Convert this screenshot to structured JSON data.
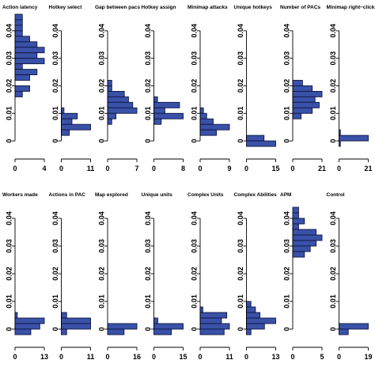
{
  "chart_data": [
    {
      "type": "bar",
      "orientation": "horizontal",
      "title": "Action latency",
      "bin_width": 0.002,
      "xticks": [
        0,
        4
      ],
      "xlim": [
        0,
        4
      ],
      "yticks": [
        0,
        0.01,
        0.02,
        0.03,
        0.04
      ],
      "ylim": [
        -0.004,
        0.046
      ],
      "bars": [
        {
          "y": 0.045,
          "v": 1
        },
        {
          "y": 0.043,
          "v": 1
        },
        {
          "y": 0.041,
          "v": 1
        },
        {
          "y": 0.039,
          "v": 1
        },
        {
          "y": 0.037,
          "v": 2
        },
        {
          "y": 0.035,
          "v": 3
        },
        {
          "y": 0.033,
          "v": 4
        },
        {
          "y": 0.031,
          "v": 3
        },
        {
          "y": 0.029,
          "v": 4
        },
        {
          "y": 0.027,
          "v": 1
        },
        {
          "y": 0.025,
          "v": 3
        },
        {
          "y": 0.023,
          "v": 2
        },
        {
          "y": 0.019,
          "v": 2
        },
        {
          "y": 0.017,
          "v": 1
        }
      ]
    },
    {
      "type": "bar",
      "orientation": "horizontal",
      "title": "Hotkey select",
      "bin_width": 0.002,
      "xticks": [
        0,
        11
      ],
      "xlim": [
        0,
        11
      ],
      "yticks": [
        0,
        0.01,
        0.02,
        0.03,
        0.04
      ],
      "ylim": [
        -0.004,
        0.046
      ],
      "bars": [
        {
          "y": 0.011,
          "v": 1
        },
        {
          "y": 0.009,
          "v": 6
        },
        {
          "y": 0.007,
          "v": 4
        },
        {
          "y": 0.005,
          "v": 11
        },
        {
          "y": 0.003,
          "v": 3
        }
      ]
    },
    {
      "type": "bar",
      "orientation": "horizontal",
      "title": "Gap between pacs",
      "bin_width": 0.002,
      "xticks": [
        0,
        7
      ],
      "xlim": [
        0,
        7
      ],
      "yticks": [
        0,
        0.01,
        0.02,
        0.03,
        0.04
      ],
      "ylim": [
        -0.004,
        0.046
      ],
      "bars": [
        {
          "y": 0.021,
          "v": 1
        },
        {
          "y": 0.019,
          "v": 1
        },
        {
          "y": 0.017,
          "v": 4
        },
        {
          "y": 0.015,
          "v": 5
        },
        {
          "y": 0.013,
          "v": 6
        },
        {
          "y": 0.011,
          "v": 7
        },
        {
          "y": 0.009,
          "v": 2
        },
        {
          "y": 0.007,
          "v": 1
        }
      ]
    },
    {
      "type": "bar",
      "orientation": "horizontal",
      "title": "Hotkey assign",
      "bin_width": 0.002,
      "xticks": [
        0,
        8
      ],
      "xlim": [
        0,
        8
      ],
      "yticks": [
        0,
        0.01,
        0.02,
        0.03,
        0.04
      ],
      "ylim": [
        -0.004,
        0.046
      ],
      "bars": [
        {
          "y": 0.015,
          "v": 1
        },
        {
          "y": 0.013,
          "v": 7
        },
        {
          "y": 0.011,
          "v": 3
        },
        {
          "y": 0.009,
          "v": 8
        },
        {
          "y": 0.007,
          "v": 2
        }
      ]
    },
    {
      "type": "bar",
      "orientation": "horizontal",
      "title": "Minimap attacks",
      "bin_width": 0.002,
      "xticks": [
        0,
        9
      ],
      "xlim": [
        0,
        9
      ],
      "yticks": [
        0,
        0.01,
        0.02,
        0.03,
        0.04
      ],
      "ylim": [
        -0.004,
        0.046
      ],
      "bars": [
        {
          "y": 0.011,
          "v": 1
        },
        {
          "y": 0.009,
          "v": 2
        },
        {
          "y": 0.007,
          "v": 4
        },
        {
          "y": 0.005,
          "v": 9
        },
        {
          "y": 0.003,
          "v": 5
        }
      ]
    },
    {
      "type": "bar",
      "orientation": "horizontal",
      "title": "Unique hotkeys",
      "bin_width": 0.002,
      "xticks": [
        0,
        15
      ],
      "xlim": [
        0,
        15
      ],
      "yticks": [
        0,
        0.01,
        0.02,
        0.03,
        0.04
      ],
      "ylim": [
        -0.004,
        0.046
      ],
      "bars": [
        {
          "y": 0.001,
          "v": 9
        },
        {
          "y": -0.001,
          "v": 15
        }
      ]
    },
    {
      "type": "bar",
      "orientation": "horizontal",
      "title": "Number of PACs",
      "bin_width": 0.002,
      "xticks": [
        0,
        21
      ],
      "xlim": [
        0,
        21
      ],
      "yticks": [
        0,
        0.01,
        0.02,
        0.03,
        0.04
      ],
      "ylim": [
        -0.004,
        0.046
      ],
      "bars": [
        {
          "y": 0.021,
          "v": 7
        },
        {
          "y": 0.019,
          "v": 14
        },
        {
          "y": 0.017,
          "v": 21
        },
        {
          "y": 0.015,
          "v": 16
        },
        {
          "y": 0.013,
          "v": 19
        },
        {
          "y": 0.011,
          "v": 14
        },
        {
          "y": 0.009,
          "v": 6
        }
      ]
    },
    {
      "type": "bar",
      "orientation": "horizontal",
      "title": "Minimap right−clicks",
      "bin_width": 0.002,
      "xticks": [
        0,
        21
      ],
      "xlim": [
        0,
        21
      ],
      "yticks": [
        0,
        0.01,
        0.02,
        0.03,
        0.04
      ],
      "ylim": [
        -0.004,
        0.046
      ],
      "bars": [
        {
          "y": 0.003,
          "v": 1
        },
        {
          "y": 0.001,
          "v": 21
        },
        {
          "y": -0.001,
          "v": 1
        }
      ]
    },
    {
      "type": "bar",
      "orientation": "horizontal",
      "title": "Workers made",
      "bin_width": 0.002,
      "xticks": [
        0,
        13
      ],
      "xlim": [
        0,
        13
      ],
      "yticks": [
        0,
        0.01,
        0.02,
        0.03,
        0.04
      ],
      "ylim": [
        -0.004,
        0.046
      ],
      "bars": [
        {
          "y": 0.005,
          "v": 1
        },
        {
          "y": 0.003,
          "v": 13
        },
        {
          "y": 0.001,
          "v": 11
        },
        {
          "y": -0.001,
          "v": 7
        }
      ]
    },
    {
      "type": "bar",
      "orientation": "horizontal",
      "title": "Actions in PAC",
      "bin_width": 0.002,
      "xticks": [
        0,
        11
      ],
      "xlim": [
        0,
        11
      ],
      "yticks": [
        0,
        0.01,
        0.02,
        0.03,
        0.04
      ],
      "ylim": [
        -0.004,
        0.046
      ],
      "bars": [
        {
          "y": 0.005,
          "v": 2
        },
        {
          "y": 0.003,
          "v": 11
        },
        {
          "y": 0.001,
          "v": 11
        },
        {
          "y": -0.001,
          "v": 2
        }
      ]
    },
    {
      "type": "bar",
      "orientation": "horizontal",
      "title": "Map explored",
      "bin_width": 0.002,
      "xticks": [
        0,
        16
      ],
      "xlim": [
        0,
        16
      ],
      "yticks": [
        0,
        0.01,
        0.02,
        0.03,
        0.04
      ],
      "ylim": [
        -0.004,
        0.046
      ],
      "bars": [
        {
          "y": 0.001,
          "v": 16
        },
        {
          "y": -0.001,
          "v": 9
        }
      ]
    },
    {
      "type": "bar",
      "orientation": "horizontal",
      "title": "Unique units",
      "bin_width": 0.002,
      "xticks": [
        0,
        15
      ],
      "xlim": [
        0,
        15
      ],
      "yticks": [
        0,
        0.01,
        0.02,
        0.03,
        0.04
      ],
      "ylim": [
        -0.004,
        0.046
      ],
      "bars": [
        {
          "y": 0.003,
          "v": 2
        },
        {
          "y": 0.001,
          "v": 15
        },
        {
          "y": -0.001,
          "v": 9
        }
      ]
    },
    {
      "type": "bar",
      "orientation": "horizontal",
      "title": "Complex Units",
      "bin_width": 0.002,
      "xticks": [
        0,
        11
      ],
      "xlim": [
        0,
        11
      ],
      "yticks": [
        0,
        0.01,
        0.02,
        0.03,
        0.04
      ],
      "ylim": [
        -0.004,
        0.046
      ],
      "bars": [
        {
          "y": 0.007,
          "v": 1
        },
        {
          "y": 0.005,
          "v": 10
        },
        {
          "y": 0.003,
          "v": 8
        },
        {
          "y": 0.001,
          "v": 11
        },
        {
          "y": -0.001,
          "v": 9
        }
      ]
    },
    {
      "type": "bar",
      "orientation": "horizontal",
      "title": "Complex Abilities",
      "bin_width": 0.002,
      "xticks": [
        0,
        13
      ],
      "xlim": [
        0,
        13
      ],
      "yticks": [
        0,
        0.01,
        0.02,
        0.03,
        0.04
      ],
      "ylim": [
        -0.004,
        0.046
      ],
      "bars": [
        {
          "y": 0.009,
          "v": 2
        },
        {
          "y": 0.007,
          "v": 4
        },
        {
          "y": 0.005,
          "v": 6
        },
        {
          "y": 0.003,
          "v": 13
        },
        {
          "y": 0.001,
          "v": 8
        },
        {
          "y": -0.001,
          "v": 2
        }
      ]
    },
    {
      "type": "bar",
      "orientation": "horizontal",
      "title": "APM",
      "bin_width": 0.002,
      "xticks": [
        0,
        5
      ],
      "xlim": [
        0,
        5
      ],
      "yticks": [
        0,
        0.01,
        0.02,
        0.03,
        0.04
      ],
      "ylim": [
        -0.004,
        0.046
      ],
      "bars": [
        {
          "y": 0.043,
          "v": 1
        },
        {
          "y": 0.041,
          "v": 1
        },
        {
          "y": 0.039,
          "v": 2
        },
        {
          "y": 0.037,
          "v": 1
        },
        {
          "y": 0.035,
          "v": 4
        },
        {
          "y": 0.033,
          "v": 5
        },
        {
          "y": 0.031,
          "v": 4
        },
        {
          "y": 0.029,
          "v": 3
        },
        {
          "y": 0.027,
          "v": 2
        }
      ]
    },
    {
      "type": "bar",
      "orientation": "horizontal",
      "title": "Control",
      "bin_width": 0.002,
      "xticks": [
        0,
        19
      ],
      "xlim": [
        0,
        19
      ],
      "yticks": [
        0,
        0.01,
        0.02,
        0.03,
        0.04
      ],
      "ylim": [
        -0.004,
        0.046
      ],
      "bars": [
        {
          "y": 0.001,
          "v": 19
        },
        {
          "y": -0.001,
          "v": 6
        }
      ]
    }
  ],
  "colors": {
    "bar_fill": "#3a51a8",
    "bar_stroke": "#0d1640",
    "axis": "#000000"
  }
}
